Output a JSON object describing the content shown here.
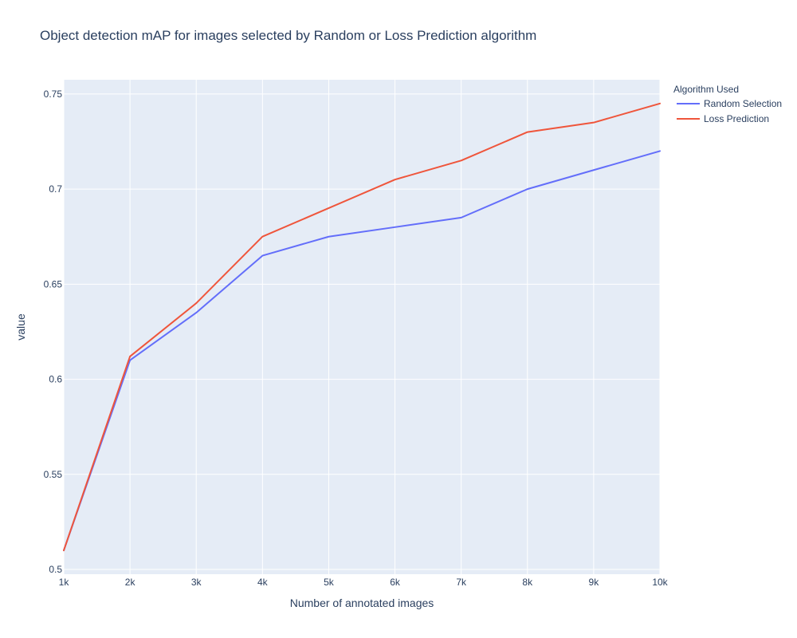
{
  "chart_data": {
    "type": "line",
    "title": "Object detection mAP for images selected by Random or Loss Prediction algorithm",
    "xlabel": "Number of annotated images",
    "ylabel": "value",
    "x": [
      1000,
      2000,
      3000,
      4000,
      5000,
      6000,
      7000,
      8000,
      9000,
      10000
    ],
    "x_tick_labels": [
      "1k",
      "2k",
      "3k",
      "4k",
      "5k",
      "6k",
      "7k",
      "8k",
      "9k",
      "10k"
    ],
    "xlim": [
      1000,
      10000
    ],
    "ylim": [
      0.4975,
      0.7575
    ],
    "y_ticks": [
      0.5,
      0.55,
      0.6,
      0.65,
      0.7,
      0.75
    ],
    "y_tick_labels": [
      "0.5",
      "0.55",
      "0.6",
      "0.65",
      "0.7",
      "0.75"
    ],
    "grid": true,
    "legend": {
      "title": "Algorithm Used",
      "placement": "right"
    },
    "series": [
      {
        "name": "Random Selection",
        "color": "#636efa",
        "values": [
          0.51,
          0.61,
          0.635,
          0.665,
          0.675,
          0.68,
          0.685,
          0.7,
          0.71,
          0.72
        ]
      },
      {
        "name": "Loss Prediction",
        "color": "#ef553b",
        "values": [
          0.51,
          0.612,
          0.64,
          0.675,
          0.69,
          0.705,
          0.715,
          0.73,
          0.735,
          0.745
        ]
      }
    ],
    "plot_background": "#e5ecf6"
  }
}
